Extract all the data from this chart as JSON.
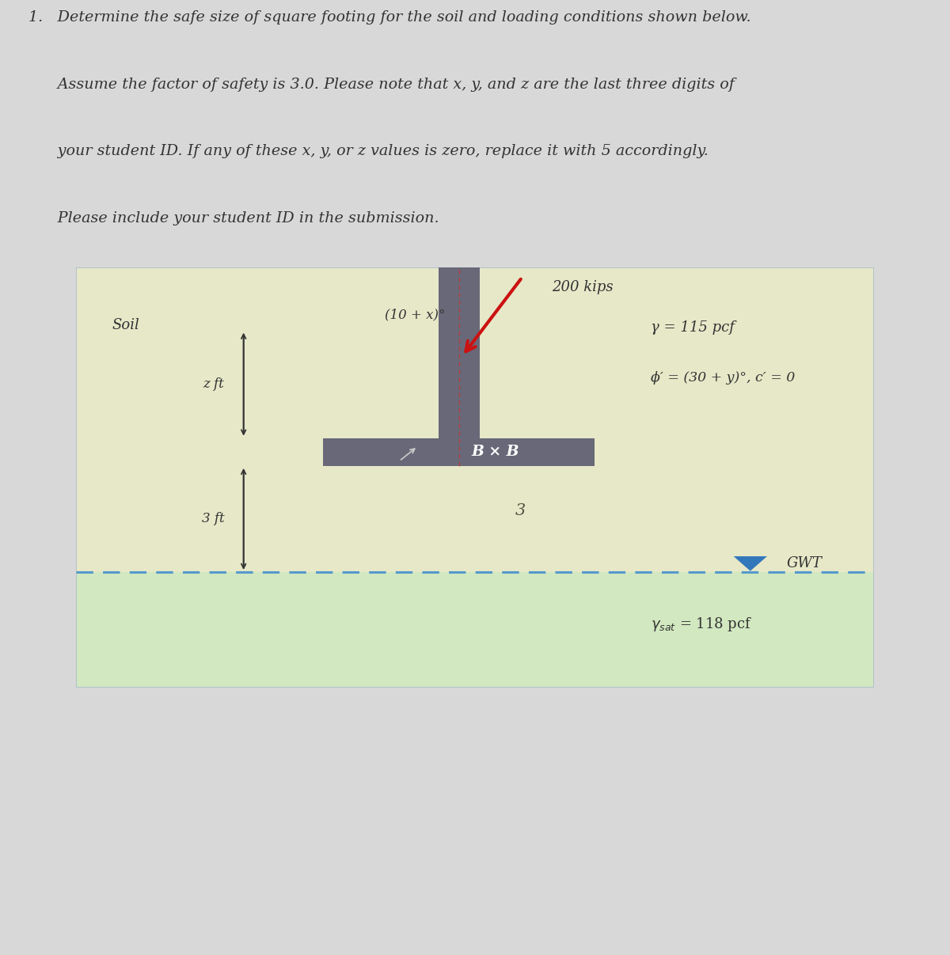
{
  "bg_color_page": "#d8d8d8",
  "bg_color_soil_upper": "#e6e8c8",
  "bg_color_soil_lower": "#d2e8c0",
  "load_label": "200 kips",
  "incline_label": "(10 + x)°",
  "soil_label": "Soil",
  "gamma_label": "γ = 115 pcf",
  "phi_label": "ϕ′ = (30 + y)°, c′ = 0",
  "z_label": "z ft",
  "three_label": "3 ft",
  "bxb_label": "B × B",
  "gwt_label": "GWT",
  "column_color": "#686878",
  "footing_color": "#686878",
  "arrow_color": "#cc1111",
  "gwt_line_color": "#5599cc",
  "gwt_triangle_color": "#3377bb",
  "text_color": "#333333",
  "line1": "1.   Determine the safe size of square footing for the soil and loading conditions shown below.",
  "line2": "      Assume the factor of safety is 3.0. Please note that x, y, and z are the last three digits of",
  "line3": "      your student ID. If any of these x, y, or z values is zero, replace it with 5 accordingly.",
  "line4": "      Please include your student ID in the submission."
}
